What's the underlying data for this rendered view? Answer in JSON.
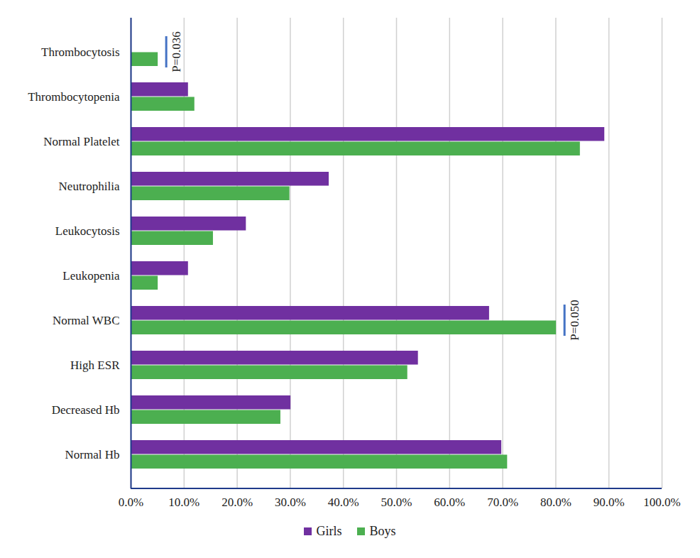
{
  "chart_data": {
    "type": "bar",
    "orientation": "horizontal",
    "categories": [
      "Thrombocytosis",
      "Thrombocytopenia",
      "Normal Platelet",
      "Neutrophilia",
      "Leukocytosis",
      "Leukopenia",
      "Normal WBC",
      "High ESR",
      "Decreased Hb",
      "Normal Hb"
    ],
    "series": [
      {
        "name": "Girls",
        "color": "#7030a0",
        "values": [
          0,
          10.8,
          89.2,
          37.3,
          21.7,
          10.8,
          67.5,
          54.1,
          30.1,
          69.8
        ]
      },
      {
        "name": "Boys",
        "color": "#4caf50",
        "values": [
          5.1,
          12.0,
          84.6,
          29.9,
          15.5,
          5.1,
          80.1,
          52.1,
          28.2,
          70.9
        ]
      }
    ],
    "xlim": [
      0,
      100
    ],
    "xticks": [
      {
        "value": 0,
        "label": "0.0%"
      },
      {
        "value": 10,
        "label": "10.0%"
      },
      {
        "value": 20,
        "label": "20.0%"
      },
      {
        "value": 30,
        "label": "30.0%"
      },
      {
        "value": 40,
        "label": "40.0%"
      },
      {
        "value": 50,
        "label": "50.0%"
      },
      {
        "value": 60,
        "label": "60.0%"
      },
      {
        "value": 70,
        "label": "70.0%"
      },
      {
        "value": 80,
        "label": "80.0%"
      },
      {
        "value": 90,
        "label": "90.0%"
      },
      {
        "value": 100,
        "label": "100.0%"
      }
    ],
    "grid": true,
    "legend": "bottom",
    "annotations": [
      {
        "text": "P=0.036",
        "category": "Thrombocytosis"
      },
      {
        "text": "P=0.050",
        "category": "Normal WBC"
      }
    ]
  }
}
